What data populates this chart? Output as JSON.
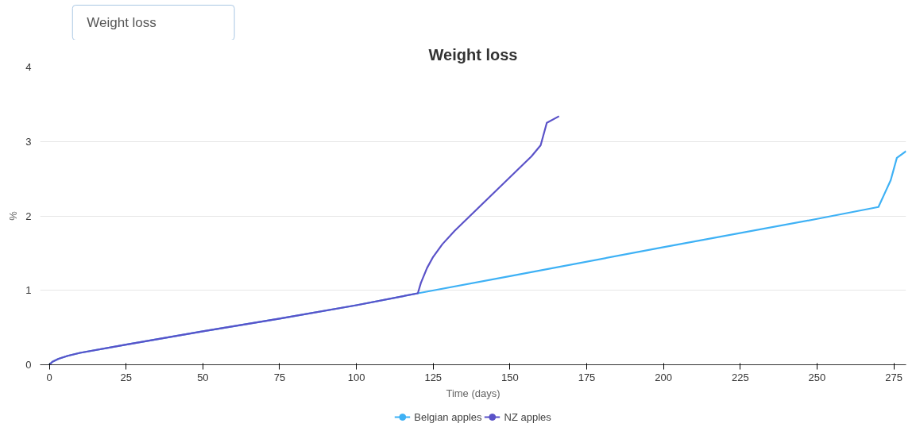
{
  "chart_data": {
    "type": "line",
    "title": "Weight loss",
    "xlabel": "Time (days)",
    "ylabel": "%",
    "annotations": [
      "Weight loss"
    ],
    "xlim": [
      -3,
      279
    ],
    "xticks": [
      0,
      25,
      50,
      75,
      100,
      125,
      150,
      175,
      200,
      225,
      250,
      275
    ],
    "ylim": [
      0,
      4
    ],
    "yticks": [
      0,
      1,
      2,
      3,
      4
    ],
    "grid": "y",
    "legend": "bottom",
    "marker": "none",
    "line_style": "solid",
    "series": [
      {
        "name": "Belgian apples",
        "color": "#3eb1f5",
        "x": [
          0,
          1,
          3,
          6,
          10,
          25,
          50,
          75,
          100,
          120,
          150,
          200,
          250,
          270,
          272,
          274,
          276,
          279
        ],
        "values": [
          0,
          0.04,
          0.08,
          0.12,
          0.16,
          0.27,
          0.45,
          0.62,
          0.8,
          0.96,
          1.19,
          1.58,
          1.96,
          2.12,
          2.3,
          2.48,
          2.78,
          2.87
        ]
      },
      {
        "name": "NZ apples",
        "color": "#5a52c8",
        "x": [
          0,
          1,
          3,
          6,
          10,
          25,
          50,
          75,
          100,
          120,
          121,
          123,
          125,
          128,
          132,
          137,
          142,
          147,
          152,
          157,
          160,
          162,
          166
        ],
        "values": [
          0,
          0.04,
          0.08,
          0.12,
          0.16,
          0.27,
          0.45,
          0.62,
          0.8,
          0.96,
          1.1,
          1.3,
          1.45,
          1.62,
          1.8,
          2.0,
          2.2,
          2.4,
          2.6,
          2.8,
          2.95,
          3.25,
          3.34
        ]
      }
    ]
  }
}
